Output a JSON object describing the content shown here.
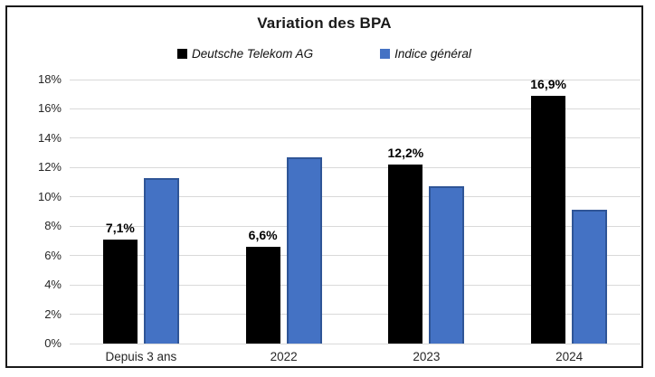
{
  "window": {
    "background": "#ffffff",
    "border_color": "#1a1a1a"
  },
  "chart_data": {
    "type": "bar",
    "title": "Variation des BPA",
    "categories": [
      "Depuis 3 ans",
      "2022",
      "2023",
      "2024"
    ],
    "series": [
      {
        "name": "Deutsche Telekom AG",
        "color": "#000000",
        "border_color": "#000000",
        "values": [
          7.1,
          6.6,
          12.2,
          16.9
        ],
        "data_labels": [
          "7,1%",
          "6,6%",
          "12,2%",
          "16,9%"
        ]
      },
      {
        "name": "Indice général",
        "color": "#4472c4",
        "border_color": "#2f5597",
        "values": [
          11.3,
          12.7,
          10.7,
          9.1
        ],
        "data_labels": []
      }
    ],
    "ylim": [
      0,
      18
    ],
    "ytick_step": 2,
    "ytick_labels": [
      "0%",
      "2%",
      "4%",
      "6%",
      "8%",
      "10%",
      "12%",
      "14%",
      "16%",
      "18%"
    ],
    "grid": true,
    "gridline_color": "#d9d9d9",
    "axis_text_color": "#262626",
    "legend_position": "top"
  }
}
